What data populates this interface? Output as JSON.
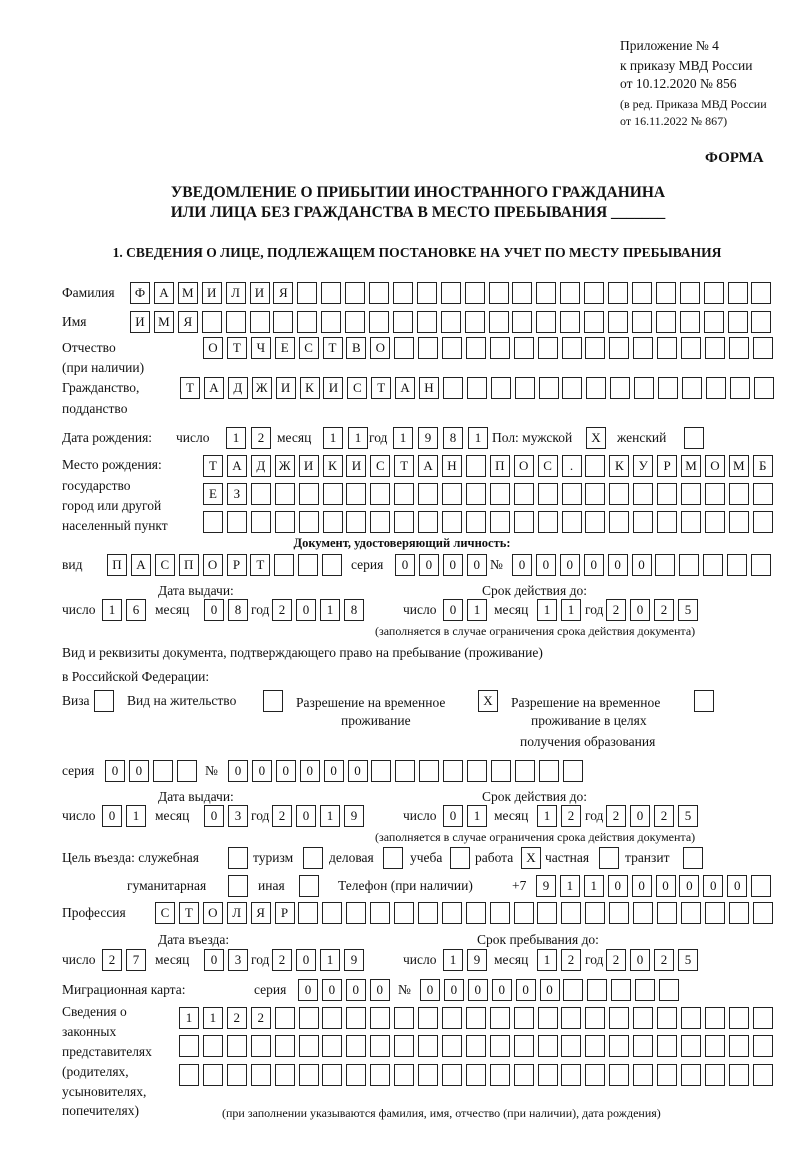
{
  "header": {
    "line1": "Приложение № 4",
    "line2": "к приказу МВД России",
    "line3": "от 10.12.2020 № 856",
    "line4": "(в ред. Приказа МВД России",
    "line5": "от 16.11.2022 № 867)",
    "form_label": "ФОРМА",
    "title1": "УВЕДОМЛЕНИЕ О ПРИБЫТИИ ИНОСТРАННОГО ГРАЖДАНИНА",
    "title2": "ИЛИ ЛИЦА БЕЗ ГРАЖДАНСТВА В МЕСТО ПРЕБЫВАНИЯ _______",
    "section1": "1. СВЕДЕНИЯ О ЛИЦЕ, ПОДЛЕЖАЩЕМ ПОСТАНОВКЕ НА УЧЕТ ПО МЕСТУ ПРЕБЫВАНИЯ"
  },
  "labels": {
    "surname": "Фамилия",
    "name": "Имя",
    "patronymic": "Отчество",
    "patronymic2": "(при наличии)",
    "citizenship": "Гражданство,",
    "citizenship2": "подданство",
    "dob": "Дата рождения:",
    "day": "число",
    "month": "месяц",
    "year": "год",
    "sex_male": "Пол: мужской",
    "sex_female": "женский",
    "birthplace1": "Место рождения:",
    "birthplace2": "государство",
    "birthplace3": "город или другой",
    "birthplace4": "населенный пункт",
    "id_doc": "Документ, удостоверяющий личность:",
    "kind": "вид",
    "series": "серия",
    "number": "№",
    "issue_date": "Дата выдачи:",
    "valid_until": "Срок действия до:",
    "validity_note": "(заполняется в случае ограничения срока действия документа)",
    "right_doc1": "Вид и реквизиты документа, подтверждающего право на пребывание (проживание)",
    "right_doc2": "в Российской Федерации:",
    "visa": "Виза",
    "residence": "Вид на жительство",
    "trp1": "Разрешение на временное",
    "trp2": "проживание",
    "trp_edu1": "Разрешение на временное",
    "trp_edu2": "проживание в целях",
    "trp_edu3": "получения образования",
    "purpose": "Цель въезда: служебная",
    "tourism": "туризм",
    "business": "деловая",
    "study": "учеба",
    "work": "работа",
    "private": "частная",
    "transit": "транзит",
    "humanitarian": "гуманитарная",
    "other": "иная",
    "phone": "Телефон (при наличии)",
    "phone_prefix": "+7",
    "profession": "Профессия",
    "entry_date": "Дата въезда:",
    "stay_until": "Срок пребывания до:",
    "migration_card": "Миграционная карта:",
    "reps1": "Сведения о",
    "reps2": "законных",
    "reps3": "представителях",
    "reps4": "(родителях,",
    "reps5": "усыновителях,",
    "reps6": "попечителях)",
    "reps_note": "(при заполнении указываются фамилия, имя, отчество (при наличии), дата рождения)"
  },
  "values": {
    "surname": "ФАМИЛИЯ",
    "name": "ИМЯ",
    "patronymic": "ОТЧЕСТВО",
    "citizenship": "ТАДЖИКИСТАН",
    "dob_day": "12",
    "dob_month": "11",
    "dob_year": "1981",
    "sex_male": "X",
    "sex_female": "",
    "birthplace_1": "ТАДЖИКИСТАН ПОС. КУРМОМБ",
    "birthplace_2": "ЕЗ",
    "birthplace_3": "",
    "id_kind": "ПАСПОРТ",
    "id_series": "0000",
    "id_number": "000000",
    "id_issue_day": "16",
    "id_issue_month": "08",
    "id_issue_year": "2018",
    "id_valid_day": "01",
    "id_valid_month": "11",
    "id_valid_year": "2025",
    "visa": "",
    "residence": "",
    "trp": "X",
    "trp_edu": "",
    "right_series": "00",
    "right_number": "000000",
    "right_issue_day": "01",
    "right_issue_month": "03",
    "right_issue_year": "2019",
    "right_valid_day": "01",
    "right_valid_month": "12",
    "right_valid_year": "2025",
    "purpose_official": "",
    "purpose_tourism": "",
    "purpose_business": "",
    "purpose_study": "",
    "purpose_work": "X",
    "purpose_private": "",
    "purpose_transit": "",
    "purpose_humanitarian": "",
    "purpose_other": "",
    "phone": "911000000",
    "profession": "СТОЛЯР",
    "entry_day": "27",
    "entry_month": "03",
    "entry_year": "2019",
    "stay_day": "19",
    "stay_month": "12",
    "stay_year": "2025",
    "mc_series": "0000",
    "mc_number": "000000",
    "reps_1": "1122",
    "reps_2": "",
    "reps_3": ""
  }
}
